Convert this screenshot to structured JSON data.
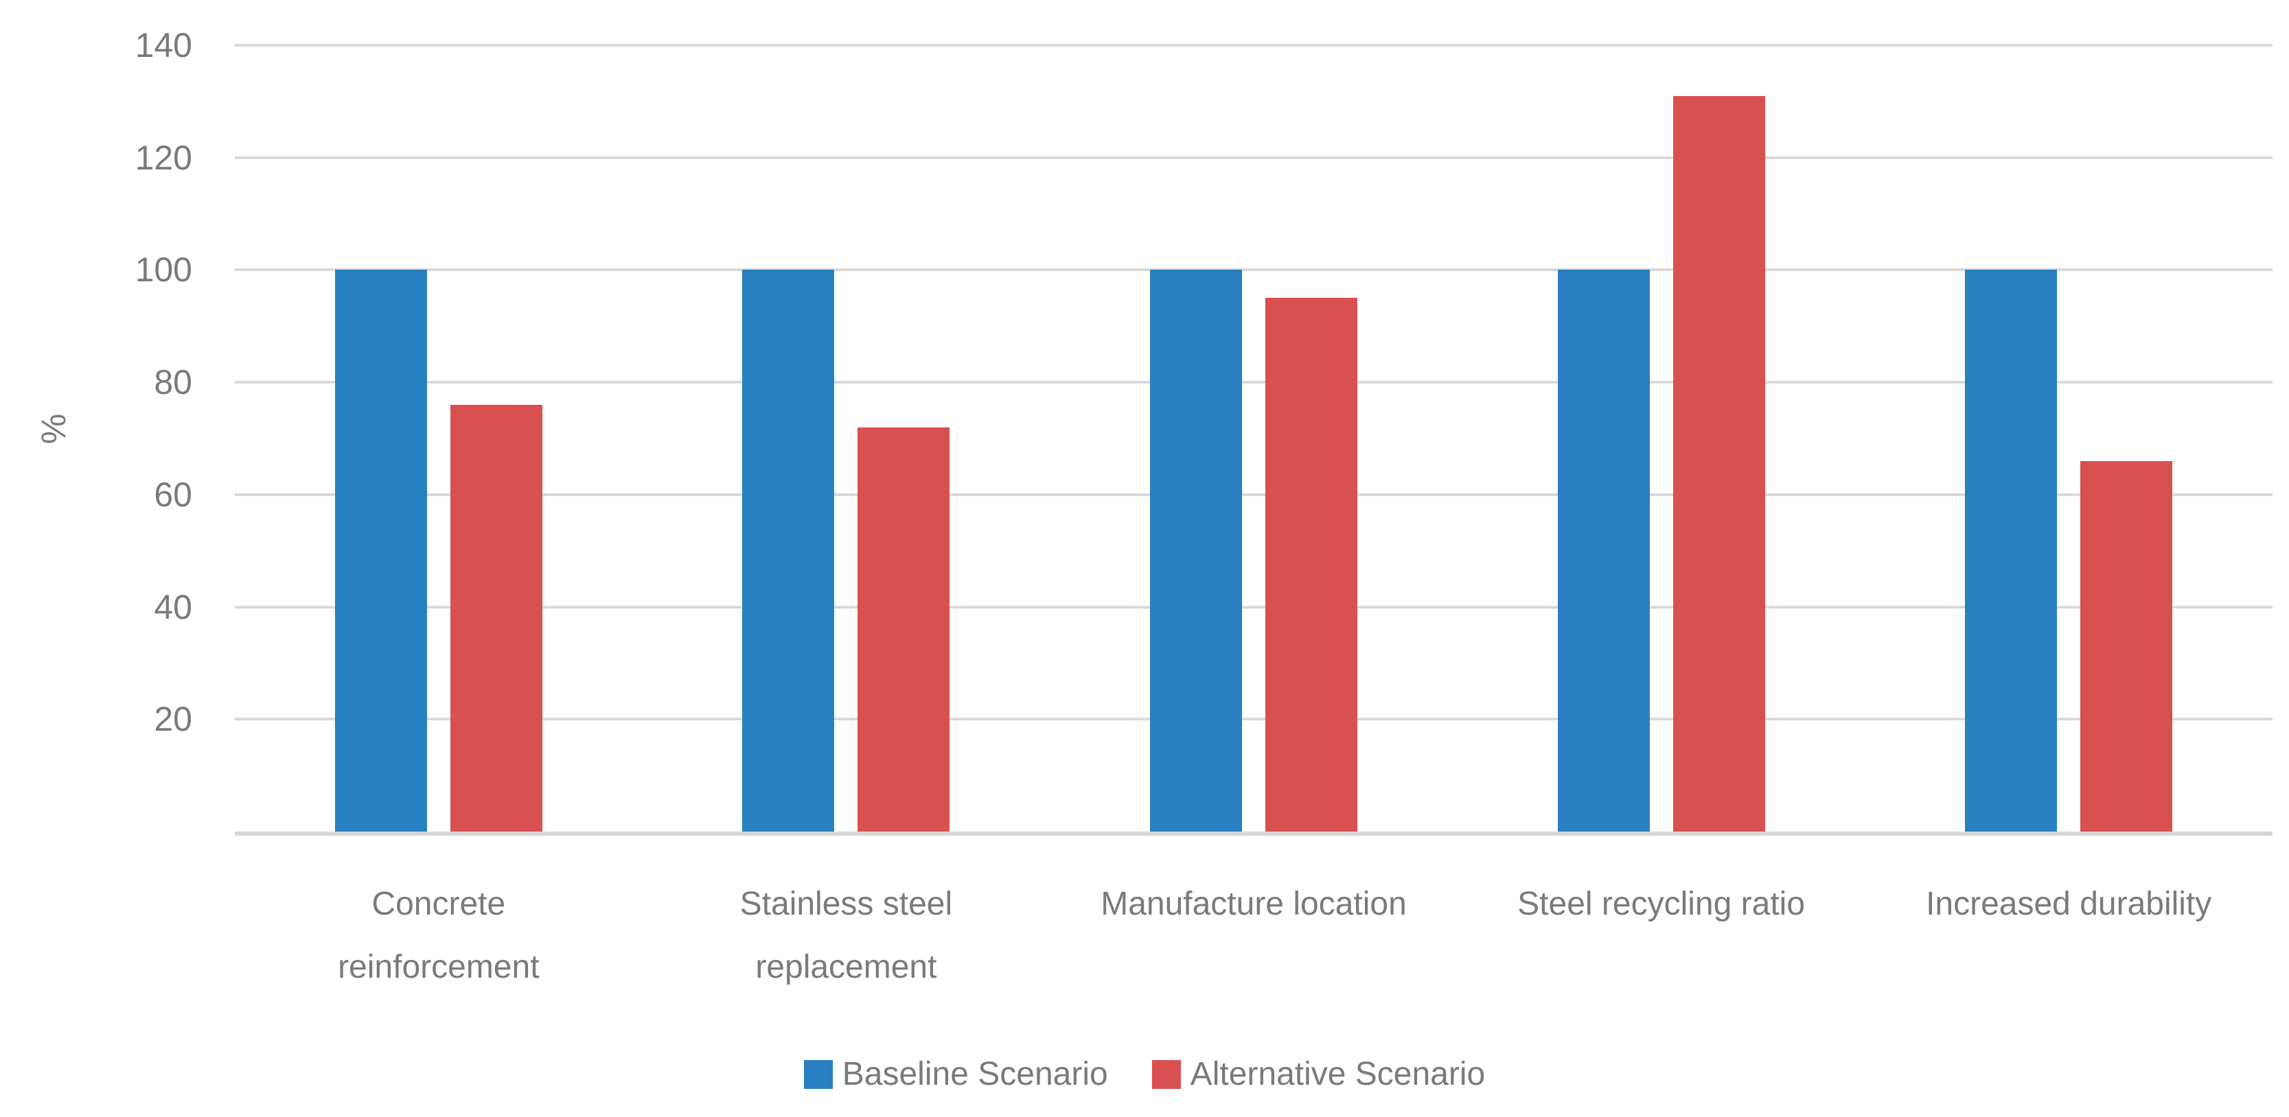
{
  "chart_data": {
    "type": "bar",
    "title": "",
    "categories": [
      "Concrete reinforcement",
      "Stainless steel replacement",
      "Manufacture location",
      "Steel recycling ratio",
      "Increased durability"
    ],
    "series": [
      {
        "name": "Baseline Scenario",
        "color": "#2880C0",
        "values": [
          100,
          100,
          100,
          100,
          100
        ]
      },
      {
        "name": "Alternative Scenario",
        "color": "#D95050",
        "values": [
          76,
          72,
          95,
          131,
          66
        ]
      }
    ],
    "xlabel": "",
    "ylabel": "%",
    "ylim": [
      0,
      140
    ],
    "yticks": [
      20,
      40,
      60,
      80,
      100,
      120,
      140
    ],
    "grid": true,
    "legend_position": "bottom",
    "colors": {
      "gridline": "#dadada",
      "axis_line": "#d6d6d6",
      "text": "#7a7a7a",
      "background": "#ffffff"
    }
  }
}
